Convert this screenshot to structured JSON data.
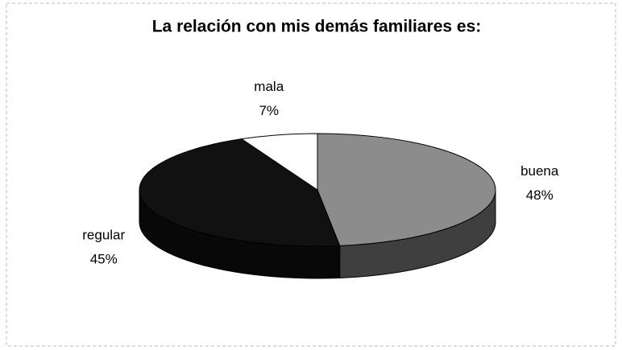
{
  "chart_data": {
    "type": "pie",
    "title": "La relación con mis demás familiares es:",
    "categories": [
      "buena",
      "regular",
      "mala"
    ],
    "values": [
      48,
      45,
      7
    ],
    "value_labels": [
      "48%",
      "45%",
      "7%"
    ],
    "colors": [
      "#8c8c8c",
      "#111111",
      "#ffffff"
    ]
  }
}
